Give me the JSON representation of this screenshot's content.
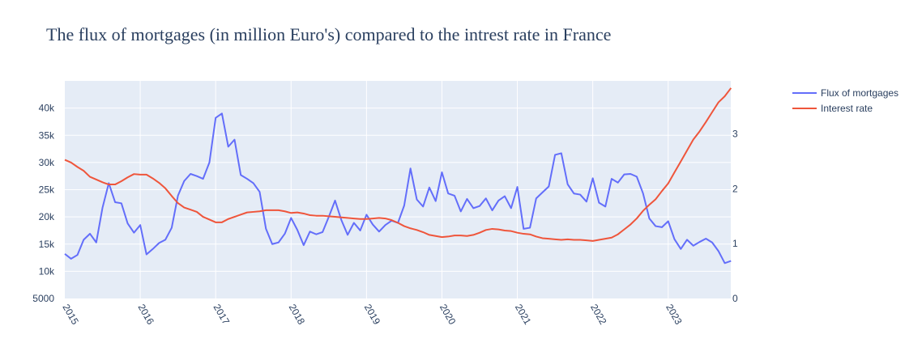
{
  "chart_data": {
    "type": "line",
    "title": "The flux of mortgages (in million Euro's) compared to the intrest rate in France",
    "xlabel": "",
    "ylabel": "",
    "x_ticks": [
      {
        "year": 2015,
        "label": "2015"
      },
      {
        "year": 2016,
        "label": "2016"
      },
      {
        "year": 2017,
        "label": "2017"
      },
      {
        "year": 2018,
        "label": "2018"
      },
      {
        "year": 2019,
        "label": "2019"
      },
      {
        "year": 2020,
        "label": "2020"
      },
      {
        "year": 2021,
        "label": "2021"
      },
      {
        "year": 2022,
        "label": "2022"
      },
      {
        "year": 2023,
        "label": "2023"
      }
    ],
    "xlim": [
      2015.0,
      2023.83
    ],
    "y_left": {
      "ylim": [
        5000,
        45000
      ],
      "ticks": [
        {
          "v": 5000,
          "label": "5000"
        },
        {
          "v": 10000,
          "label": "10k"
        },
        {
          "v": 15000,
          "label": "15k"
        },
        {
          "v": 20000,
          "label": "20k"
        },
        {
          "v": 25000,
          "label": "25k"
        },
        {
          "v": 30000,
          "label": "30k"
        },
        {
          "v": 35000,
          "label": "35k"
        },
        {
          "v": 40000,
          "label": "40k"
        }
      ]
    },
    "y_right": {
      "ylim": [
        0,
        3.97
      ],
      "ticks": [
        {
          "v": 0,
          "label": "0"
        },
        {
          "v": 1,
          "label": "1"
        },
        {
          "v": 2,
          "label": "2"
        },
        {
          "v": 3,
          "label": "3"
        }
      ]
    },
    "grid": true,
    "legend_position": "top-right",
    "series": [
      {
        "name": "Flux of mortgages",
        "axis": "left",
        "color": "#636efa",
        "points": [
          [
            2015.0,
            13200
          ],
          [
            2015.083,
            12300
          ],
          [
            2015.167,
            13000
          ],
          [
            2015.25,
            15800
          ],
          [
            2015.333,
            16900
          ],
          [
            2015.417,
            15300
          ],
          [
            2015.5,
            21700
          ],
          [
            2015.583,
            26200
          ],
          [
            2015.667,
            22700
          ],
          [
            2015.75,
            22500
          ],
          [
            2015.833,
            18800
          ],
          [
            2015.917,
            17100
          ],
          [
            2016.0,
            18500
          ],
          [
            2016.083,
            13100
          ],
          [
            2016.167,
            14100
          ],
          [
            2016.25,
            15200
          ],
          [
            2016.333,
            15800
          ],
          [
            2016.417,
            18000
          ],
          [
            2016.5,
            23900
          ],
          [
            2016.583,
            26600
          ],
          [
            2016.667,
            27900
          ],
          [
            2016.75,
            27500
          ],
          [
            2016.833,
            27000
          ],
          [
            2016.917,
            30000
          ],
          [
            2017.0,
            38200
          ],
          [
            2017.083,
            39000
          ],
          [
            2017.167,
            32900
          ],
          [
            2017.25,
            34200
          ],
          [
            2017.333,
            27700
          ],
          [
            2017.417,
            27000
          ],
          [
            2017.5,
            26200
          ],
          [
            2017.583,
            24600
          ],
          [
            2017.667,
            17800
          ],
          [
            2017.75,
            15000
          ],
          [
            2017.833,
            15300
          ],
          [
            2017.917,
            16900
          ],
          [
            2018.0,
            19800
          ],
          [
            2018.083,
            17600
          ],
          [
            2018.167,
            14800
          ],
          [
            2018.25,
            17300
          ],
          [
            2018.333,
            16800
          ],
          [
            2018.417,
            17200
          ],
          [
            2018.5,
            20000
          ],
          [
            2018.583,
            23000
          ],
          [
            2018.667,
            19400
          ],
          [
            2018.75,
            16700
          ],
          [
            2018.833,
            18900
          ],
          [
            2018.917,
            17500
          ],
          [
            2019.0,
            20400
          ],
          [
            2019.083,
            18600
          ],
          [
            2019.167,
            17300
          ],
          [
            2019.25,
            18500
          ],
          [
            2019.333,
            19300
          ],
          [
            2019.417,
            18900
          ],
          [
            2019.5,
            22100
          ],
          [
            2019.583,
            28900
          ],
          [
            2019.667,
            23200
          ],
          [
            2019.75,
            21900
          ],
          [
            2019.833,
            25400
          ],
          [
            2019.917,
            22900
          ],
          [
            2020.0,
            28200
          ],
          [
            2020.083,
            24300
          ],
          [
            2020.167,
            23900
          ],
          [
            2020.25,
            21000
          ],
          [
            2020.333,
            23300
          ],
          [
            2020.417,
            21600
          ],
          [
            2020.5,
            22000
          ],
          [
            2020.583,
            23400
          ],
          [
            2020.667,
            21200
          ],
          [
            2020.75,
            23000
          ],
          [
            2020.833,
            23800
          ],
          [
            2020.917,
            21600
          ],
          [
            2021.0,
            25500
          ],
          [
            2021.083,
            17800
          ],
          [
            2021.167,
            18000
          ],
          [
            2021.25,
            23400
          ],
          [
            2021.333,
            24500
          ],
          [
            2021.417,
            25600
          ],
          [
            2021.5,
            31400
          ],
          [
            2021.583,
            31700
          ],
          [
            2021.667,
            26000
          ],
          [
            2021.75,
            24300
          ],
          [
            2021.833,
            24100
          ],
          [
            2021.917,
            22800
          ],
          [
            2022.0,
            27100
          ],
          [
            2022.083,
            22600
          ],
          [
            2022.167,
            21900
          ],
          [
            2022.25,
            27000
          ],
          [
            2022.333,
            26300
          ],
          [
            2022.417,
            27800
          ],
          [
            2022.5,
            27900
          ],
          [
            2022.583,
            27400
          ],
          [
            2022.667,
            24300
          ],
          [
            2022.75,
            19700
          ],
          [
            2022.833,
            18300
          ],
          [
            2022.917,
            18100
          ],
          [
            2023.0,
            19200
          ],
          [
            2023.083,
            15900
          ],
          [
            2023.167,
            14100
          ],
          [
            2023.25,
            15800
          ],
          [
            2023.333,
            14700
          ],
          [
            2023.417,
            15400
          ],
          [
            2023.5,
            16000
          ],
          [
            2023.583,
            15300
          ],
          [
            2023.667,
            13700
          ],
          [
            2023.75,
            11500
          ],
          [
            2023.833,
            11900
          ]
        ]
      },
      {
        "name": "Interest rate",
        "axis": "right",
        "color": "#ef553b",
        "points": [
          [
            2015.0,
            2.53
          ],
          [
            2015.083,
            2.48
          ],
          [
            2015.167,
            2.4
          ],
          [
            2015.25,
            2.33
          ],
          [
            2015.333,
            2.22
          ],
          [
            2015.417,
            2.17
          ],
          [
            2015.5,
            2.12
          ],
          [
            2015.583,
            2.08
          ],
          [
            2015.667,
            2.08
          ],
          [
            2015.75,
            2.14
          ],
          [
            2015.833,
            2.21
          ],
          [
            2015.917,
            2.27
          ],
          [
            2016.0,
            2.26
          ],
          [
            2016.083,
            2.26
          ],
          [
            2016.167,
            2.19
          ],
          [
            2016.25,
            2.11
          ],
          [
            2016.333,
            2.01
          ],
          [
            2016.417,
            1.87
          ],
          [
            2016.5,
            1.74
          ],
          [
            2016.583,
            1.66
          ],
          [
            2016.667,
            1.62
          ],
          [
            2016.75,
            1.58
          ],
          [
            2016.833,
            1.49
          ],
          [
            2016.917,
            1.44
          ],
          [
            2017.0,
            1.39
          ],
          [
            2017.083,
            1.39
          ],
          [
            2017.167,
            1.45
          ],
          [
            2017.25,
            1.49
          ],
          [
            2017.333,
            1.53
          ],
          [
            2017.417,
            1.57
          ],
          [
            2017.5,
            1.58
          ],
          [
            2017.583,
            1.59
          ],
          [
            2017.667,
            1.61
          ],
          [
            2017.75,
            1.61
          ],
          [
            2017.833,
            1.61
          ],
          [
            2017.917,
            1.59
          ],
          [
            2018.0,
            1.56
          ],
          [
            2018.083,
            1.57
          ],
          [
            2018.167,
            1.55
          ],
          [
            2018.25,
            1.52
          ],
          [
            2018.333,
            1.51
          ],
          [
            2018.417,
            1.51
          ],
          [
            2018.5,
            1.5
          ],
          [
            2018.583,
            1.49
          ],
          [
            2018.667,
            1.48
          ],
          [
            2018.75,
            1.47
          ],
          [
            2018.833,
            1.46
          ],
          [
            2018.917,
            1.45
          ],
          [
            2019.0,
            1.45
          ],
          [
            2019.083,
            1.46
          ],
          [
            2019.167,
            1.47
          ],
          [
            2019.25,
            1.46
          ],
          [
            2019.333,
            1.43
          ],
          [
            2019.417,
            1.38
          ],
          [
            2019.5,
            1.32
          ],
          [
            2019.583,
            1.28
          ],
          [
            2019.667,
            1.25
          ],
          [
            2019.75,
            1.21
          ],
          [
            2019.833,
            1.16
          ],
          [
            2019.917,
            1.14
          ],
          [
            2020.0,
            1.12
          ],
          [
            2020.083,
            1.13
          ],
          [
            2020.167,
            1.15
          ],
          [
            2020.25,
            1.15
          ],
          [
            2020.333,
            1.14
          ],
          [
            2020.417,
            1.16
          ],
          [
            2020.5,
            1.2
          ],
          [
            2020.583,
            1.25
          ],
          [
            2020.667,
            1.27
          ],
          [
            2020.75,
            1.26
          ],
          [
            2020.833,
            1.24
          ],
          [
            2020.917,
            1.23
          ],
          [
            2021.0,
            1.2
          ],
          [
            2021.083,
            1.18
          ],
          [
            2021.167,
            1.17
          ],
          [
            2021.25,
            1.13
          ],
          [
            2021.333,
            1.1
          ],
          [
            2021.417,
            1.09
          ],
          [
            2021.5,
            1.08
          ],
          [
            2021.583,
            1.07
          ],
          [
            2021.667,
            1.08
          ],
          [
            2021.75,
            1.07
          ],
          [
            2021.833,
            1.07
          ],
          [
            2021.917,
            1.06
          ],
          [
            2022.0,
            1.05
          ],
          [
            2022.083,
            1.07
          ],
          [
            2022.167,
            1.09
          ],
          [
            2022.25,
            1.11
          ],
          [
            2022.333,
            1.17
          ],
          [
            2022.417,
            1.26
          ],
          [
            2022.5,
            1.35
          ],
          [
            2022.583,
            1.46
          ],
          [
            2022.667,
            1.6
          ],
          [
            2022.75,
            1.71
          ],
          [
            2022.833,
            1.81
          ],
          [
            2022.917,
            1.96
          ],
          [
            2023.0,
            2.1
          ],
          [
            2023.083,
            2.3
          ],
          [
            2023.167,
            2.5
          ],
          [
            2023.25,
            2.7
          ],
          [
            2023.333,
            2.9
          ],
          [
            2023.417,
            3.05
          ],
          [
            2023.5,
            3.22
          ],
          [
            2023.583,
            3.4
          ],
          [
            2023.667,
            3.58
          ],
          [
            2023.75,
            3.69
          ],
          [
            2023.833,
            3.84
          ]
        ]
      }
    ]
  }
}
